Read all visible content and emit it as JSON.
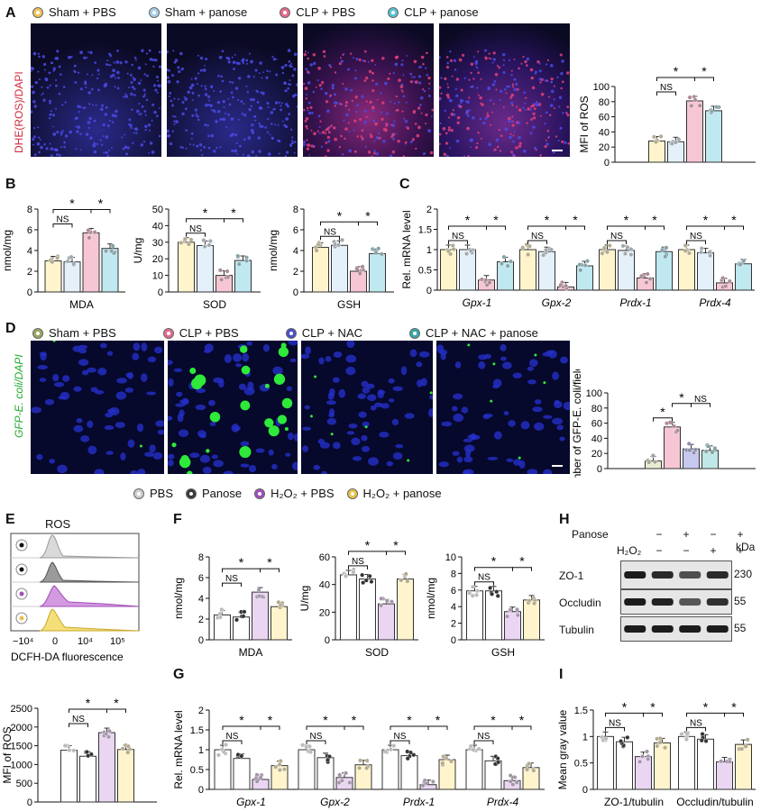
{
  "panels": {
    "A": "A",
    "B": "B",
    "C": "C",
    "D": "D",
    "E": "E",
    "F": "F",
    "G": "G",
    "H": "H",
    "I": "I"
  },
  "legendA": [
    {
      "label": "Sham + PBS",
      "color": "#f2c45a"
    },
    {
      "label": "Sham + panose",
      "color": "#a7cfe8"
    },
    {
      "label": "CLP + PBS",
      "color": "#e56b8f"
    },
    {
      "label": "CLP + panose",
      "color": "#58c2d6"
    }
  ],
  "legendD": [
    {
      "label": "Sham + PBS",
      "color": "#9aa860"
    },
    {
      "label": "CLP + PBS",
      "color": "#e56b8f"
    },
    {
      "label": "CLP + NAC",
      "color": "#4a4fc8"
    },
    {
      "label": "CLP + NAC + panose",
      "color": "#3aa8a8"
    }
  ],
  "legendE": [
    {
      "label": "PBS",
      "color": "#cfcfcf"
    },
    {
      "label": "Panose",
      "color": "#3a3a3a"
    },
    {
      "label": "H₂O₂ + PBS",
      "color": "#a04fb8"
    },
    {
      "label": "H₂O₂ + panose",
      "color": "#e8c24a"
    }
  ],
  "A_ylabel": "DHE(ROS)/DAPI",
  "D_ylabel": "GFP-E. coli/DAPI",
  "E_title": "ROS",
  "E_xlabel": "DCFH-DA fluorescence",
  "E_ticks": [
    "−10⁴",
    "0",
    "10⁴",
    "10⁵"
  ],
  "H": {
    "panose_label": "Panose",
    "h2o2_label": "H₂O₂",
    "panose_signs": [
      "−",
      "+",
      "−",
      "+"
    ],
    "h2o2_signs": [
      "−",
      "−",
      "+",
      "+"
    ],
    "kda_label": "kDa",
    "rows": [
      {
        "name": "ZO-1",
        "kda": "230",
        "level": [
          1.0,
          0.9,
          0.6,
          0.88
        ]
      },
      {
        "name": "Occludin",
        "kda": "55",
        "level": [
          1.0,
          0.95,
          0.55,
          0.85
        ]
      },
      {
        "name": "Tubulin",
        "kda": "55",
        "level": [
          1.0,
          1.0,
          1.0,
          1.0
        ]
      }
    ]
  },
  "chart_data": [
    {
      "id": "A-ros",
      "type": "bar",
      "ylabel": "MFI of ROS",
      "ylim": [
        0,
        100
      ],
      "yticks": [
        0,
        20,
        40,
        60,
        80,
        100
      ],
      "categories": [
        "Sham + PBS",
        "Sham + panose",
        "CLP + PBS",
        "CLP + panose"
      ],
      "values": [
        28,
        27,
        81,
        68
      ],
      "colors": [
        "#fff4cc",
        "#e4f1fa",
        "#f7c6d4",
        "#bfe8f0"
      ],
      "annotations": [
        {
          "pair": [
            0,
            1
          ],
          "text": "NS"
        },
        {
          "pair": [
            0,
            2
          ],
          "text": "*"
        },
        {
          "pair": [
            2,
            3
          ],
          "text": "*"
        }
      ]
    },
    {
      "id": "B-mda",
      "type": "bar",
      "ylabel": "nmol/mg",
      "xlabel": "MDA",
      "ylim": [
        0,
        8
      ],
      "yticks": [
        0,
        2,
        4,
        6,
        8
      ],
      "values": [
        3.0,
        2.9,
        5.7,
        4.2
      ],
      "colors": [
        "#fff4cc",
        "#e4f1fa",
        "#f7c6d4",
        "#bfe8f0"
      ],
      "annotations": [
        {
          "pair": [
            0,
            1
          ],
          "text": "NS"
        },
        {
          "pair": [
            0,
            2
          ],
          "text": "*"
        },
        {
          "pair": [
            2,
            3
          ],
          "text": "*"
        }
      ]
    },
    {
      "id": "B-sod",
      "type": "bar",
      "ylabel": "U/mg",
      "xlabel": "SOD",
      "ylim": [
        0,
        50
      ],
      "yticks": [
        0,
        10,
        20,
        30,
        40,
        50
      ],
      "values": [
        30,
        28,
        10,
        19
      ],
      "colors": [
        "#fff4cc",
        "#e4f1fa",
        "#f7c6d4",
        "#bfe8f0"
      ],
      "annotations": [
        {
          "pair": [
            0,
            1
          ],
          "text": "NS"
        },
        {
          "pair": [
            0,
            2
          ],
          "text": "*"
        },
        {
          "pair": [
            2,
            3
          ],
          "text": "*"
        }
      ]
    },
    {
      "id": "B-gsh",
      "type": "bar",
      "ylabel": "nmol/mg",
      "xlabel": "GSH",
      "ylim": [
        0,
        8
      ],
      "yticks": [
        0,
        2,
        4,
        6,
        8
      ],
      "values": [
        4.3,
        4.5,
        2.0,
        3.7
      ],
      "colors": [
        "#fff4cc",
        "#e4f1fa",
        "#f7c6d4",
        "#bfe8f0"
      ],
      "annotations": [
        {
          "pair": [
            0,
            1
          ],
          "text": "NS"
        },
        {
          "pair": [
            0,
            2
          ],
          "text": "*"
        },
        {
          "pair": [
            2,
            3
          ],
          "text": "*"
        }
      ]
    },
    {
      "id": "C-mrna",
      "type": "bar",
      "ylabel": "Rel. mRNA  level",
      "ylim": [
        0,
        2.0
      ],
      "yticks": [
        0,
        0.5,
        1.0,
        1.5,
        2.0
      ],
      "categories": [
        "Gpx-1",
        "Gpx-2",
        "Prdx-1",
        "Prdx-4"
      ],
      "series": [
        {
          "values": [
            1.0,
            1.0,
            1.0,
            1.0
          ]
        },
        {
          "values": [
            1.0,
            0.95,
            0.98,
            0.92
          ]
        },
        {
          "values": [
            0.25,
            0.08,
            0.3,
            0.18
          ]
        },
        {
          "values": [
            0.7,
            0.6,
            0.95,
            0.65
          ]
        }
      ],
      "colors": [
        "#fff4cc",
        "#e4f1fa",
        "#f7c6d4",
        "#bfe8f0"
      ],
      "annotations": [
        {
          "pair": [
            0,
            1
          ],
          "text": "NS"
        },
        {
          "pair": [
            0,
            2
          ],
          "text": "*"
        },
        {
          "pair": [
            2,
            3
          ],
          "text": "*"
        }
      ]
    },
    {
      "id": "D-ecoli",
      "type": "bar",
      "ylabel": "Number of GFP-E. coli/field",
      "ylim": [
        0,
        100
      ],
      "yticks": [
        0,
        20,
        40,
        60,
        80,
        100
      ],
      "values": [
        10,
        55,
        26,
        24
      ],
      "colors": [
        "#e9ecd2",
        "#f7c6d4",
        "#c7c8f0",
        "#bfe8e8"
      ],
      "annotations": [
        {
          "pair": [
            0,
            1
          ],
          "text": "*"
        },
        {
          "pair": [
            1,
            2
          ],
          "text": "*"
        },
        {
          "pair": [
            2,
            3
          ],
          "text": "NS"
        }
      ]
    },
    {
      "id": "E-mfi",
      "type": "bar",
      "ylabel": "MFI of ROS",
      "ylim": [
        0,
        2500
      ],
      "yticks": [
        0,
        500,
        1000,
        1500,
        2000,
        2500
      ],
      "values": [
        1380,
        1220,
        1850,
        1400
      ],
      "colors": [
        "#ffffff",
        "#ffffff",
        "#ead6f2",
        "#fff4cc"
      ],
      "annotations": [
        {
          "pair": [
            0,
            1
          ],
          "text": "NS"
        },
        {
          "pair": [
            0,
            2
          ],
          "text": "*"
        },
        {
          "pair": [
            2,
            3
          ],
          "text": "*"
        }
      ]
    },
    {
      "id": "F-mda",
      "type": "bar",
      "ylabel": "nmol/mg",
      "xlabel": "MDA",
      "ylim": [
        0,
        8
      ],
      "yticks": [
        0,
        2,
        4,
        6,
        8
      ],
      "values": [
        2.4,
        2.2,
        4.6,
        3.2
      ],
      "colors": [
        "#ffffff",
        "#ffffff",
        "#ead6f2",
        "#fff4cc"
      ],
      "annotations": [
        {
          "pair": [
            0,
            1
          ],
          "text": "NS"
        },
        {
          "pair": [
            0,
            2
          ],
          "text": "*"
        },
        {
          "pair": [
            2,
            3
          ],
          "text": "*"
        }
      ]
    },
    {
      "id": "F-sod",
      "type": "bar",
      "ylabel": "U/mg",
      "xlabel": "SOD",
      "ylim": [
        0,
        60
      ],
      "yticks": [
        0,
        20,
        40,
        60
      ],
      "values": [
        47,
        44,
        26,
        44
      ],
      "colors": [
        "#ffffff",
        "#ffffff",
        "#ead6f2",
        "#fff4cc"
      ],
      "annotations": [
        {
          "pair": [
            0,
            1
          ],
          "text": "NS"
        },
        {
          "pair": [
            0,
            2
          ],
          "text": "*"
        },
        {
          "pair": [
            2,
            3
          ],
          "text": "*"
        }
      ]
    },
    {
      "id": "F-gsh",
      "type": "bar",
      "ylabel": "nmol/mg",
      "xlabel": "GSH",
      "ylim": [
        0,
        10
      ],
      "yticks": [
        0,
        2,
        4,
        6,
        8,
        10
      ],
      "values": [
        5.9,
        5.9,
        3.4,
        4.8
      ],
      "colors": [
        "#ffffff",
        "#ffffff",
        "#ead6f2",
        "#fff4cc"
      ],
      "annotations": [
        {
          "pair": [
            0,
            1
          ],
          "text": "NS"
        },
        {
          "pair": [
            0,
            2
          ],
          "text": "*"
        },
        {
          "pair": [
            2,
            3
          ],
          "text": "*"
        }
      ]
    },
    {
      "id": "G-mrna",
      "type": "bar",
      "ylabel": "Rel. mRNA  level",
      "ylim": [
        0,
        2.0
      ],
      "yticks": [
        0,
        0.5,
        1.0,
        1.5,
        2.0
      ],
      "categories": [
        "Gpx-1",
        "Gpx-2",
        "Prdx-1",
        "Prdx-4"
      ],
      "series": [
        {
          "values": [
            1.0,
            1.0,
            1.0,
            1.0
          ]
        },
        {
          "values": [
            0.78,
            0.8,
            0.85,
            0.72
          ]
        },
        {
          "values": [
            0.25,
            0.3,
            0.12,
            0.22
          ]
        },
        {
          "values": [
            0.6,
            0.62,
            0.75,
            0.55
          ]
        }
      ],
      "colors": [
        "#ffffff",
        "#ffffff",
        "#ead6f2",
        "#fff4cc"
      ],
      "annotations": [
        {
          "pair": [
            0,
            1
          ],
          "text": "NS"
        },
        {
          "pair": [
            0,
            2
          ],
          "text": "*"
        },
        {
          "pair": [
            2,
            3
          ],
          "text": "*"
        }
      ]
    },
    {
      "id": "I-gray",
      "type": "bar",
      "ylabel": "Mean gray value",
      "ylim": [
        0,
        1.5
      ],
      "yticks": [
        0,
        0.5,
        1.0,
        1.5
      ],
      "categories": [
        "ZO-1/tubulin",
        "Occludin/tubulin"
      ],
      "series": [
        {
          "values": [
            1.0,
            1.0
          ]
        },
        {
          "values": [
            0.9,
            0.95
          ]
        },
        {
          "values": [
            0.62,
            0.52
          ]
        },
        {
          "values": [
            0.88,
            0.85
          ]
        }
      ],
      "colors": [
        "#ffffff",
        "#ffffff",
        "#ead6f2",
        "#fff4cc"
      ],
      "annotations": [
        {
          "pair": [
            0,
            1
          ],
          "text": "NS"
        },
        {
          "pair": [
            0,
            2
          ],
          "text": "*"
        },
        {
          "pair": [
            2,
            3
          ],
          "text": "*"
        }
      ]
    }
  ]
}
